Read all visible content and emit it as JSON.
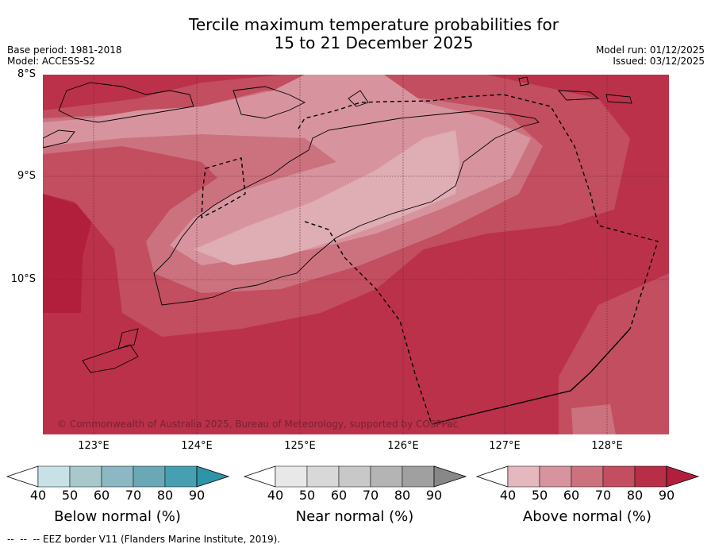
{
  "title_line1": "Tercile maximum temperature probabilities for",
  "title_line2": "15 to 21 December 2025",
  "meta": {
    "base_period": "Base period: 1981-2018",
    "model": "Model: ACCESS-S2",
    "model_run": "Model run: 01/12/2025",
    "issued": "Issued: 03/12/2025"
  },
  "lat_labels": [
    "8°S",
    "9°S",
    "10°S"
  ],
  "lon_labels": [
    "123°E",
    "124°E",
    "125°E",
    "126°E",
    "127°E",
    "128°E"
  ],
  "copyright": "© Commonwealth of Australia 2025, Bureau of Meteorology, supported by COSPPac",
  "legends": {
    "below": {
      "label": "Below normal (%)",
      "colors": [
        "#ffffff",
        "#c7e1e7",
        "#a8c8cc",
        "#8bb8c2",
        "#6aa8b5",
        "#46a0b2",
        "#2e94a8"
      ]
    },
    "near": {
      "label": "Near normal (%)",
      "colors": [
        "#ffffff",
        "#e8e8e8",
        "#d8d8d8",
        "#c8c8c8",
        "#b4b4b4",
        "#a0a0a0",
        "#888888"
      ]
    },
    "above": {
      "label": "Above normal (%)",
      "colors": [
        "#ffffff",
        "#e3b8bf",
        "#d7949f",
        "#cc727f",
        "#c24e60",
        "#b82e47",
        "#b21f3c"
      ]
    }
  },
  "ticks": [
    "40",
    "50",
    "60",
    "70",
    "80",
    "90"
  ],
  "footer": "--  --  -- EEZ border V11 (Flanders Marine Institute, 2019)."
}
